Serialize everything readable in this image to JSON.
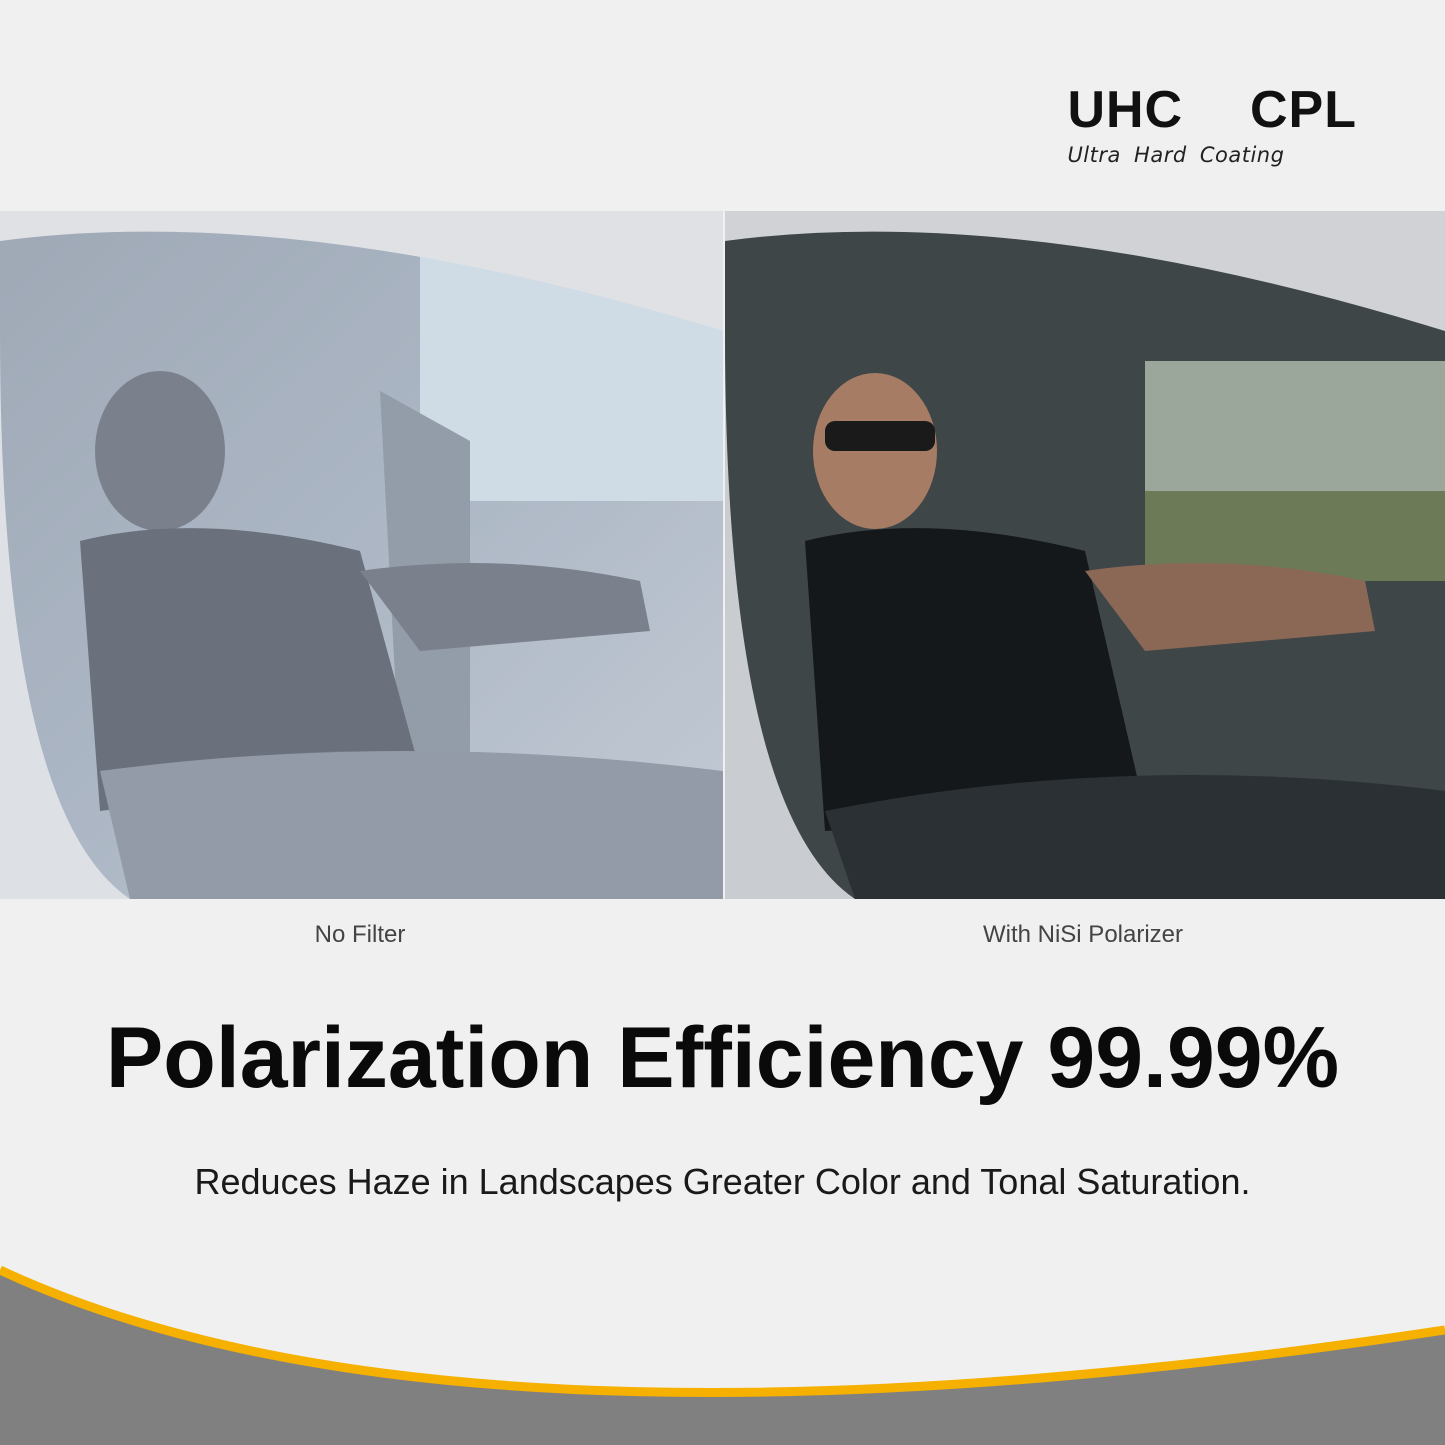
{
  "brand": {
    "title": "UHC  CPL",
    "subtitle": "Ultra Hard Coating"
  },
  "comparison": {
    "left_caption": "No Filter",
    "right_caption": "With NiSi Polarizer"
  },
  "headline": "Polarization Efficiency 99.99%",
  "subheadline": "Reduces Haze in Landscapes Greater Color and Tonal Saturation.",
  "colors": {
    "background": "#f0f0f0",
    "accent": "#f5b000",
    "footer": "#808080"
  }
}
